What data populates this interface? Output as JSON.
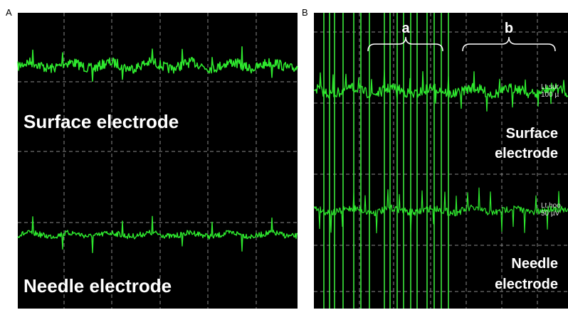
{
  "panels": [
    {
      "label": "A",
      "traces": [
        {
          "label": "Surface electrode"
        },
        {
          "label": "Needle electrode"
        }
      ]
    },
    {
      "label": "B",
      "brackets": [
        "a",
        "b"
      ],
      "traces": [
        {
          "label_lines": [
            "Surface",
            "electrode"
          ],
          "channel": "Lt.sur",
          "scale": "100 µ"
        },
        {
          "label_lines": [
            "Needle",
            "electrode"
          ],
          "channel": "Lt.hoo",
          "scale": "50 µV"
        }
      ]
    }
  ]
}
